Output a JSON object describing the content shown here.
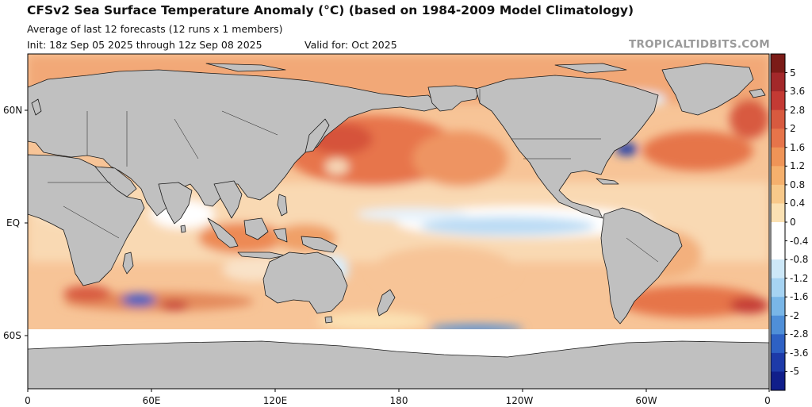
{
  "header": {
    "title": "CFSv2 Sea Surface Temperature Anomaly (°C) (based on 1984-2009 Model Climatology)",
    "subtitle": "Average of last 12 forecasts (12 runs x 1 members)",
    "init": "Init: 18z Sep 05 2025 through 12z Sep 08 2025",
    "valid": "Valid for: Oct 2025",
    "brand": "TROPICALTIDBITS.COM"
  },
  "axes": {
    "lat_labels": [
      "60N",
      "EQ",
      "60S"
    ],
    "lon_labels": [
      "0",
      "60E",
      "120E",
      "180",
      "120W",
      "60W",
      "0"
    ]
  },
  "colorbar": {
    "ticks": [
      "5",
      "3.6",
      "2.8",
      "2",
      "1.6",
      "1.2",
      "0.8",
      "0.4",
      "0",
      "-0.4",
      "-0.8",
      "-1.2",
      "-1.6",
      "-2",
      "-2.8",
      "-3.6",
      "-5"
    ],
    "colors": [
      "#7b1b17",
      "#a3282a",
      "#c43a34",
      "#d85a3f",
      "#e6744a",
      "#ef9457",
      "#f5b06d",
      "#f8c98a",
      "#fbe1b3",
      "#ffffff",
      "#ffffff",
      "#cde8f8",
      "#a6d3f2",
      "#79b6e7",
      "#4f8fd8",
      "#2e61c4",
      "#1d3aa8",
      "#101e8a"
    ]
  },
  "colors": {
    "land": "#c0c0c0",
    "sea_ice": "#ffffff",
    "coast": "#1a1a1a",
    "background": "#ffffff"
  }
}
